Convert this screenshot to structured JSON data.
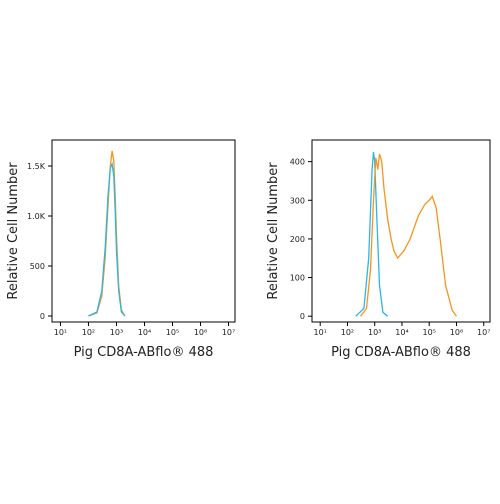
{
  "chart_data": [
    {
      "type": "line",
      "x_scale": "log",
      "xlabel": "Pig CD8A-ABflo® 488",
      "ylabel": "Relative Cell Number",
      "xlim": [
        5,
        17000000
      ],
      "xticks": [
        {
          "value": 10,
          "label": "10¹"
        },
        {
          "value": 100,
          "label": "10²"
        },
        {
          "value": 1000,
          "label": "10³"
        },
        {
          "value": 10000,
          "label": "10⁴"
        },
        {
          "value": 100000,
          "label": "10⁵"
        },
        {
          "value": 1000000,
          "label": "10⁶"
        },
        {
          "value": 10000000,
          "label": "10⁷"
        }
      ],
      "ylim": [
        -60,
        1760
      ],
      "yticks": [
        0,
        500,
        {
          "value": 1000,
          "label": "1.0K"
        },
        {
          "value": 1500,
          "label": "1.5K"
        }
      ],
      "series": [
        {
          "color": "#f7941d",
          "x": [
            100,
            200,
            300,
            400,
            500,
            600,
            700,
            800,
            900,
            1000,
            1200,
            1500,
            2000
          ],
          "values": [
            0,
            30,
            200,
            600,
            1100,
            1500,
            1650,
            1550,
            1200,
            800,
            300,
            60,
            0
          ]
        },
        {
          "color": "#29b6e8",
          "x": [
            100,
            200,
            300,
            400,
            500,
            600,
            700,
            800,
            900,
            1000,
            1200,
            1500,
            2000
          ],
          "values": [
            0,
            40,
            250,
            700,
            1200,
            1480,
            1520,
            1400,
            1050,
            650,
            250,
            40,
            0
          ]
        }
      ]
    },
    {
      "type": "line",
      "x_scale": "log",
      "xlabel": "Pig CD8A-ABflo® 488",
      "ylabel": "Relative Cell Number",
      "xlim": [
        5,
        17000000
      ],
      "xticks": [
        {
          "value": 10,
          "label": "10¹"
        },
        {
          "value": 100,
          "label": "10²"
        },
        {
          "value": 1000,
          "label": "10³"
        },
        {
          "value": 10000,
          "label": "10⁴"
        },
        {
          "value": 100000,
          "label": "10⁵"
        },
        {
          "value": 1000000,
          "label": "10⁶"
        },
        {
          "value": 10000000,
          "label": "10⁷"
        }
      ],
      "ylim": [
        -15,
        456
      ],
      "yticks": [
        0,
        100,
        200,
        300,
        400
      ],
      "series": [
        {
          "color": "#29b6e8",
          "x": [
            200,
            400,
            600,
            800,
            900,
            1000,
            1200,
            1500,
            2000,
            3000
          ],
          "values": [
            0,
            20,
            150,
            380,
            425,
            400,
            250,
            80,
            10,
            0
          ]
        },
        {
          "color": "#f7941d",
          "x": [
            300,
            500,
            700,
            900,
            1100,
            1300,
            1500,
            1800,
            2200,
            3000,
            4000,
            5000,
            7000,
            9000,
            12000,
            20000,
            40000,
            70000,
            100000,
            130000,
            180000,
            250000,
            400000,
            700000,
            1000000
          ],
          "values": [
            0,
            20,
            120,
            300,
            410,
            380,
            420,
            400,
            330,
            250,
            200,
            170,
            150,
            160,
            170,
            200,
            260,
            290,
            300,
            310,
            280,
            200,
            80,
            15,
            0
          ]
        }
      ]
    }
  ]
}
